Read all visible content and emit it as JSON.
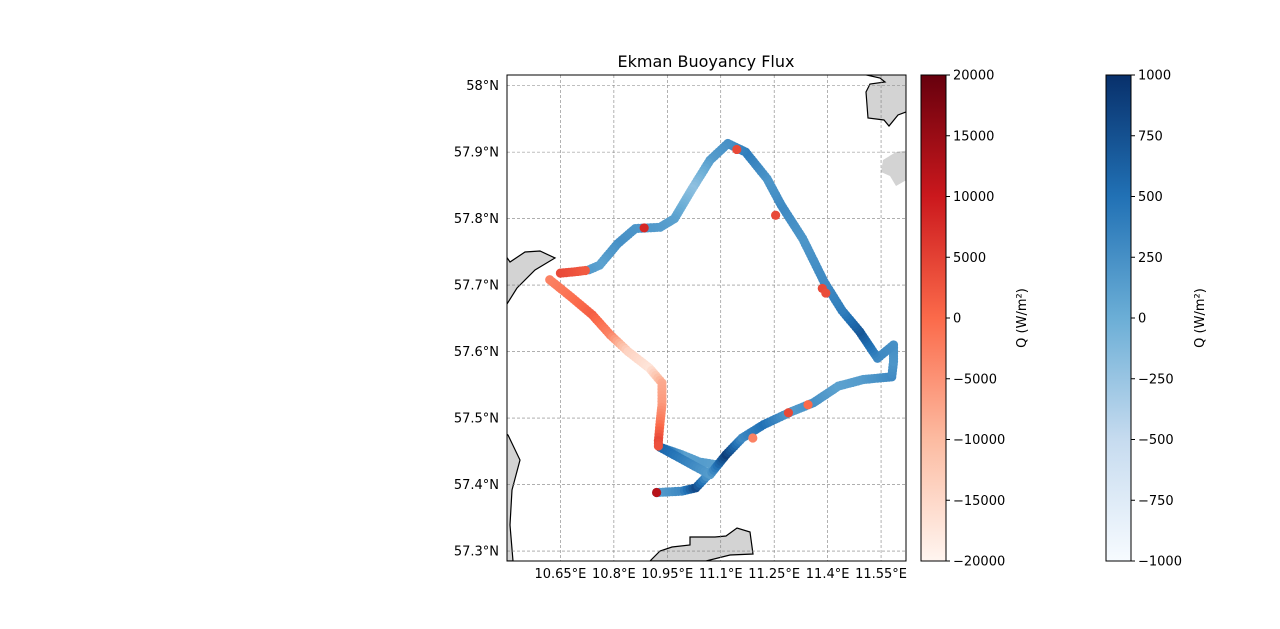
{
  "chart_data": {
    "type": "scatter",
    "title": "Ekman Buoyancy Flux",
    "map": {
      "lon_range": [
        10.5,
        11.62
      ],
      "lat_range": [
        57.285,
        58.016
      ],
      "x_ticks": [
        10.65,
        10.8,
        10.95,
        11.1,
        11.25,
        11.4,
        11.55
      ],
      "x_tick_labels": [
        "10.65°E",
        "10.8°E",
        "10.95°E",
        "11.1°E",
        "11.25°E",
        "11.4°E",
        "11.55°E"
      ],
      "y_ticks": [
        57.3,
        57.4,
        57.5,
        57.6,
        57.7,
        57.8,
        57.9,
        58.0
      ],
      "y_tick_labels": [
        "57.3°N",
        "57.4°N",
        "57.5°N",
        "57.6°N",
        "57.7°N",
        "57.8°N",
        "57.9°N",
        "58°N"
      ],
      "grid": true,
      "land_color": "#d3d3d3"
    },
    "colorbars": [
      {
        "name": "positive/negative Reds",
        "colormap": "Reds",
        "label": "Q (W/m²)",
        "range": [
          -20000,
          20000
        ],
        "ticks": [
          -20000,
          -15000,
          -10000,
          -5000,
          0,
          5000,
          10000,
          15000,
          20000
        ],
        "tick_labels": [
          "−20000",
          "−15000",
          "−10000",
          "−5000",
          "0",
          "5000",
          "10000",
          "15000",
          "20000"
        ]
      },
      {
        "name": "Blues",
        "colormap": "Blues",
        "label": "Q (W/m²)",
        "range": [
          -1000,
          1000
        ],
        "ticks": [
          -1000,
          -750,
          -500,
          -250,
          0,
          250,
          500,
          750,
          1000
        ],
        "tick_labels": [
          "−1000",
          "−750",
          "−500",
          "−250",
          "0",
          "250",
          "500",
          "750",
          "1000"
        ]
      }
    ],
    "track_blue": [
      {
        "lon": 10.92,
        "lat": 57.388,
        "q": 120
      },
      {
        "lon": 10.99,
        "lat": 57.39,
        "q": 300
      },
      {
        "lon": 11.03,
        "lat": 57.395,
        "q": 800
      },
      {
        "lon": 11.06,
        "lat": 57.412,
        "q": 250
      },
      {
        "lon": 11.085,
        "lat": 57.43,
        "q": 100
      },
      {
        "lon": 11.04,
        "lat": 57.434,
        "q": 150
      },
      {
        "lon": 10.99,
        "lat": 57.445,
        "q": 120
      },
      {
        "lon": 10.93,
        "lat": 57.456,
        "q": 600
      },
      {
        "lon": 11.07,
        "lat": 57.415,
        "q": 150
      },
      {
        "lon": 11.115,
        "lat": 57.445,
        "q": 900
      },
      {
        "lon": 11.16,
        "lat": 57.47,
        "q": 300
      },
      {
        "lon": 11.22,
        "lat": 57.49,
        "q": 500
      },
      {
        "lon": 11.3,
        "lat": 57.51,
        "q": 150
      },
      {
        "lon": 11.36,
        "lat": 57.523,
        "q": 250
      },
      {
        "lon": 11.43,
        "lat": 57.548,
        "q": 100
      },
      {
        "lon": 11.5,
        "lat": 57.558,
        "q": 150
      },
      {
        "lon": 11.58,
        "lat": 57.562,
        "q": 300
      },
      {
        "lon": 11.585,
        "lat": 57.585,
        "q": 200
      },
      {
        "lon": 11.585,
        "lat": 57.61,
        "q": 250
      },
      {
        "lon": 11.54,
        "lat": 57.59,
        "q": 300
      },
      {
        "lon": 11.49,
        "lat": 57.63,
        "q": 700
      },
      {
        "lon": 11.44,
        "lat": 57.662,
        "q": 400
      },
      {
        "lon": 11.39,
        "lat": 57.705,
        "q": 300
      },
      {
        "lon": 11.33,
        "lat": 57.77,
        "q": 200
      },
      {
        "lon": 11.27,
        "lat": 57.82,
        "q": 300
      },
      {
        "lon": 11.23,
        "lat": 57.86,
        "q": 200
      },
      {
        "lon": 11.17,
        "lat": 57.9,
        "q": 400
      },
      {
        "lon": 11.12,
        "lat": 57.913,
        "q": 250
      },
      {
        "lon": 11.07,
        "lat": 57.888,
        "q": 150
      },
      {
        "lon": 11.02,
        "lat": 57.845,
        "q": -200
      },
      {
        "lon": 10.97,
        "lat": 57.8,
        "q": 100
      },
      {
        "lon": 10.93,
        "lat": 57.787,
        "q": 150
      },
      {
        "lon": 10.86,
        "lat": 57.785,
        "q": 200
      },
      {
        "lon": 10.81,
        "lat": 57.762,
        "q": 250
      },
      {
        "lon": 10.76,
        "lat": 57.73,
        "q": 100
      },
      {
        "lon": 10.73,
        "lat": 57.723,
        "q": 150
      }
    ],
    "track_red": [
      {
        "lon": 10.65,
        "lat": 57.718,
        "q": 4000
      },
      {
        "lon": 10.69,
        "lat": 57.72,
        "q": 3000
      },
      {
        "lon": 10.72,
        "lat": 57.722,
        "q": 2000
      },
      {
        "lon": 10.62,
        "lat": 57.708,
        "q": -3000
      },
      {
        "lon": 10.68,
        "lat": 57.682,
        "q": -1000
      },
      {
        "lon": 10.74,
        "lat": 57.655,
        "q": 1500
      },
      {
        "lon": 10.79,
        "lat": 57.625,
        "q": -3000
      },
      {
        "lon": 10.84,
        "lat": 57.6,
        "q": -14000
      },
      {
        "lon": 10.9,
        "lat": 57.575,
        "q": -17000
      },
      {
        "lon": 10.935,
        "lat": 57.553,
        "q": -8000
      },
      {
        "lon": 10.935,
        "lat": 57.52,
        "q": -6000
      },
      {
        "lon": 10.93,
        "lat": 57.495,
        "q": -2000
      },
      {
        "lon": 10.925,
        "lat": 57.466,
        "q": 4000
      },
      {
        "lon": 10.925,
        "lat": 57.458,
        "q": 3000
      },
      {
        "lon": 10.92,
        "lat": 57.388,
        "q": 12000
      },
      {
        "lon": 10.885,
        "lat": 57.786,
        "q": 8000
      },
      {
        "lon": 11.145,
        "lat": 57.904,
        "q": 4000
      },
      {
        "lon": 11.254,
        "lat": 57.805,
        "q": 4000
      },
      {
        "lon": 11.385,
        "lat": 57.695,
        "q": 4000
      },
      {
        "lon": 11.395,
        "lat": 57.688,
        "q": 3500
      },
      {
        "lon": 11.19,
        "lat": 57.47,
        "q": -3000
      },
      {
        "lon": 11.29,
        "lat": 57.508,
        "q": 4000
      },
      {
        "lon": 11.345,
        "lat": 57.52,
        "q": 0
      }
    ]
  }
}
